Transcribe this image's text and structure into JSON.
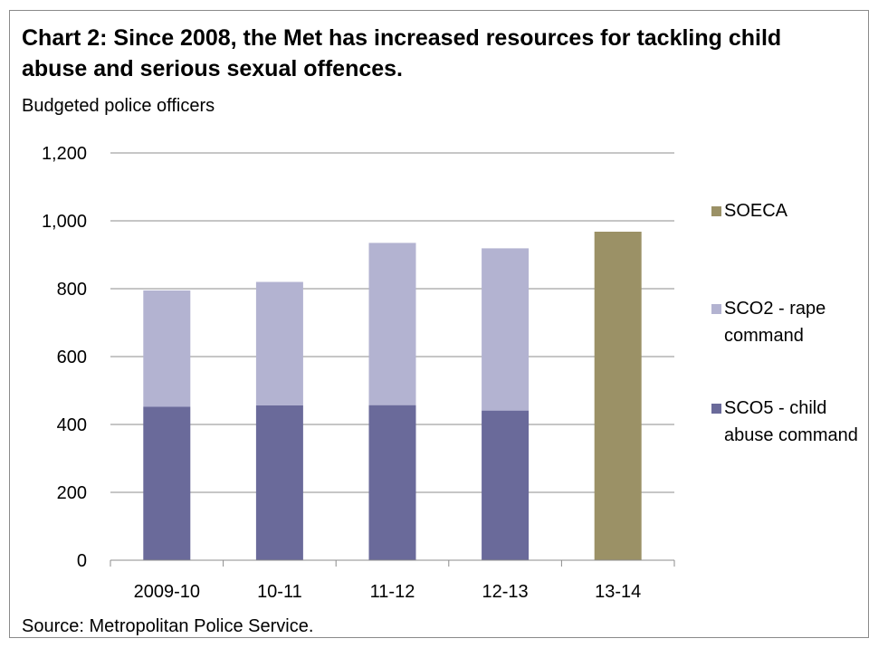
{
  "title": "Chart 2: Since 2008, the Met has increased resources for tackling child abuse and serious sexual offences.",
  "subtitle": "Budgeted police officers",
  "source": "Source: Metropolitan Police Service.",
  "colors": {
    "SCO5": "#6a6a9a",
    "SCO2": "#b3b3d1",
    "SOECA": "#9b9166",
    "grid": "#8c8c8c"
  },
  "chart_data": {
    "type": "bar",
    "stacked": true,
    "categories": [
      "2009-10",
      "10-11",
      "11-12",
      "12-13",
      "13-14"
    ],
    "series": [
      {
        "name": "SCO5 - child abuse command",
        "key": "SCO5",
        "values": [
          452,
          456,
          457,
          441,
          0
        ]
      },
      {
        "name": "SCO2 - rape command",
        "key": "SCO2",
        "values": [
          343,
          364,
          478,
          478,
          0
        ]
      },
      {
        "name": "SOECA",
        "key": "SOECA",
        "values": [
          0,
          0,
          0,
          0,
          968
        ]
      }
    ],
    "ylim": [
      0,
      1200
    ],
    "yticks": [
      0,
      200,
      400,
      600,
      800,
      1000,
      1200
    ],
    "ytick_labels": [
      "0",
      "200",
      "400",
      "600",
      "800",
      "1,000",
      "1,200"
    ],
    "grid": true,
    "legend_position": "right",
    "legend_order": [
      "SOECA",
      "SCO2",
      "SCO5"
    ],
    "xlabel": "",
    "ylabel": ""
  },
  "legend": {
    "SOECA": "SOECA",
    "SCO2": "SCO2 - rape command",
    "SCO5": "SCO5 - child abuse command"
  }
}
